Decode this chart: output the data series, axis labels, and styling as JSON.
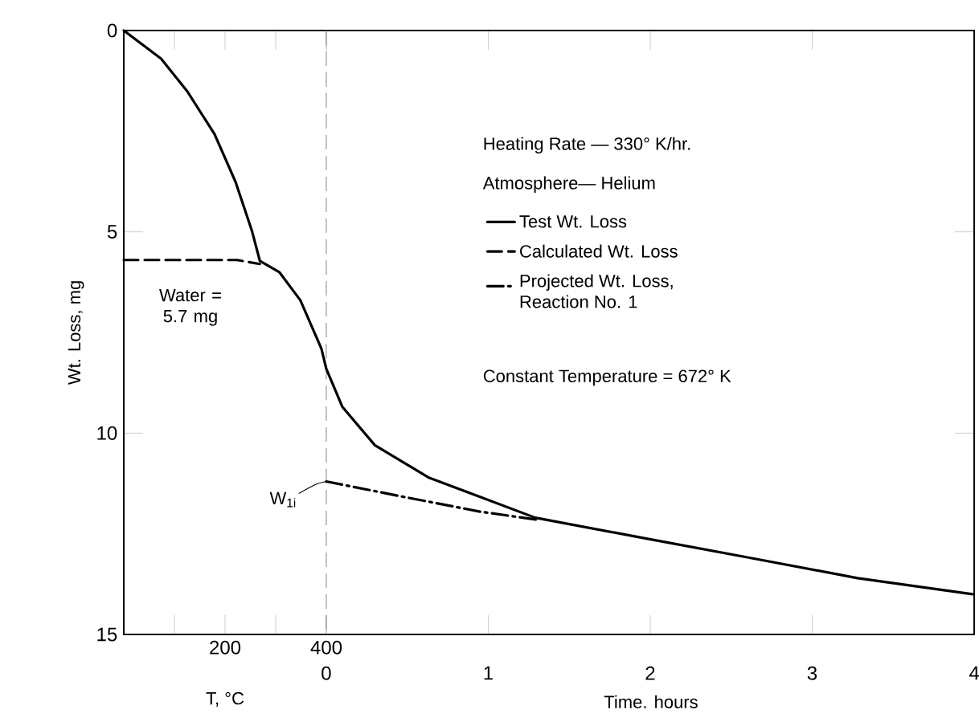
{
  "chart_data": {
    "type": "line",
    "xlabel": "Time. hours",
    "x2label": "T, °C",
    "ylabel": "Wt. Loss, mg",
    "xlim": [
      -1.25,
      4
    ],
    "xticks": [
      0,
      1,
      2,
      3,
      4
    ],
    "x2lim": [
      0,
      400
    ],
    "x2ticks": [
      {
        "value": 100,
        "label": null
      },
      200,
      {
        "value": 300,
        "label": null
      },
      400
    ],
    "ylim": [
      15,
      0
    ],
    "yticks": [
      0,
      5,
      10,
      15
    ],
    "legend": "top right",
    "series": [
      {
        "name": "Test Wt. Loss",
        "color": "#000000",
        "line_style": "solid",
        "x": [
          -1.25,
          -1.02,
          -0.86,
          -0.69,
          -0.56,
          -0.46,
          -0.41,
          -0.29,
          -0.16,
          -0.03,
          0,
          0.1,
          0.3,
          0.63,
          0.96,
          1.29,
          1.95,
          2.62,
          3.28,
          3.99
        ],
        "values": [
          0,
          0.7,
          1.5,
          2.57,
          3.76,
          4.96,
          5.72,
          6.0,
          6.7,
          7.9,
          8.4,
          9.35,
          10.3,
          11.1,
          11.6,
          12.1,
          12.6,
          13.1,
          13.6,
          14.0
        ]
      },
      {
        "name": "Calculated Wt. Loss",
        "color": "#000000",
        "line_style": "dashed",
        "x": [
          -1.25,
          -0.55,
          -0.41
        ],
        "values": [
          5.7,
          5.7,
          5.8
        ]
      },
      {
        "name": "Projected Wt. Loss, Reaction No. 1",
        "color": "#000000",
        "line_style": "dashdotted",
        "x": [
          0,
          0.5,
          0.95,
          1.3
        ],
        "values": [
          11.2,
          11.6,
          11.95,
          12.15
        ]
      }
    ],
    "ref_lines": [
      {
        "axis": "x",
        "value": 0,
        "color": "#999999",
        "line_style": "dashed"
      }
    ],
    "annotations": [
      "Heating Rate — 330° K/hr.",
      "Atmosphere— Helium",
      "Constant Temperature = 672° K",
      "Water = 5.7 mg",
      {
        "text": "W$_{1i}$",
        "x": 0,
        "y": 11.2
      }
    ]
  }
}
